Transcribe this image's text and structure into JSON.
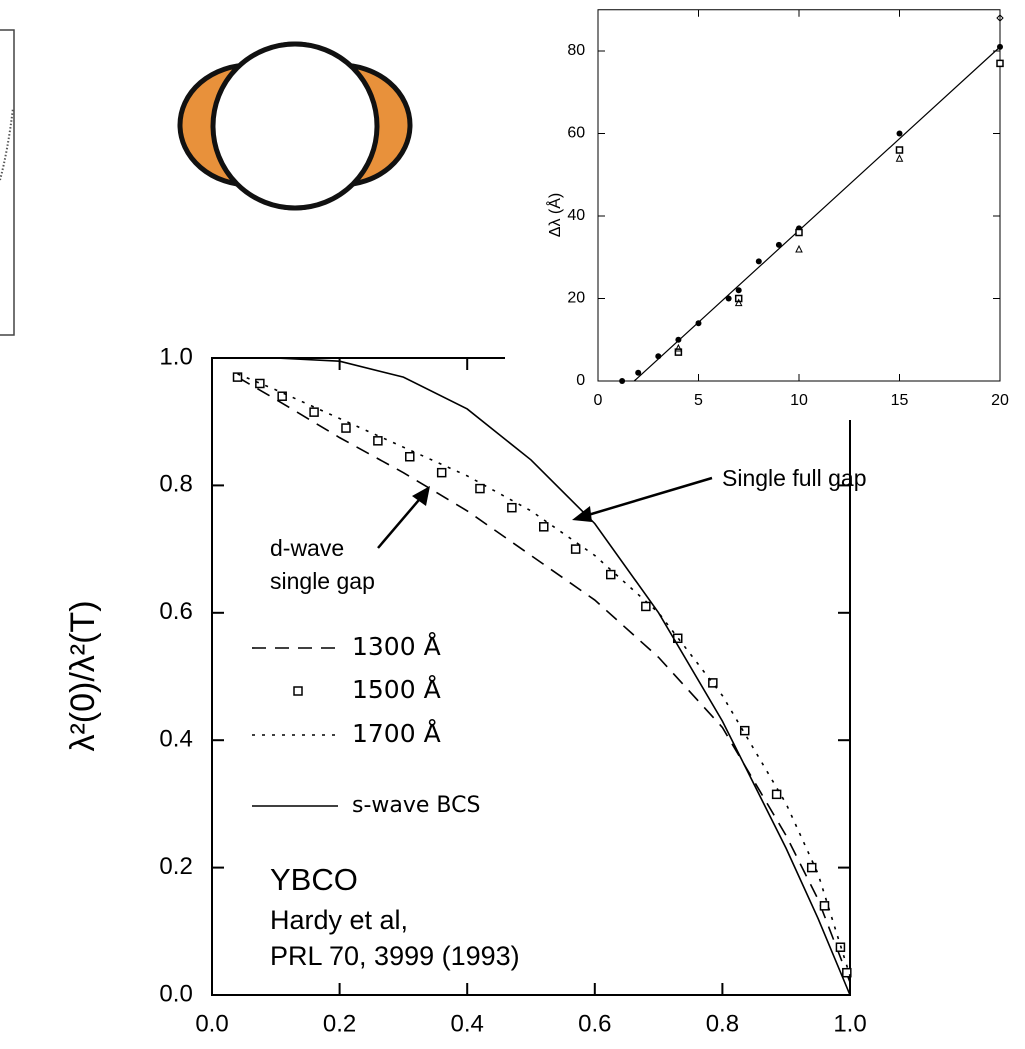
{
  "chart_data": [
    {
      "type": "line",
      "y_label": "λ²(0)/λ²(T)",
      "xlim": [
        0,
        1
      ],
      "ylim": [
        0,
        1
      ],
      "xticks": [
        {
          "value": 0,
          "label": "0.0"
        },
        {
          "value": 0.2,
          "label": "0.2"
        },
        {
          "value": 0.4,
          "label": "0.4"
        },
        {
          "value": 0.6,
          "label": "0.6"
        },
        {
          "value": 0.8,
          "label": "0.8"
        },
        {
          "value": 1,
          "label": "1.0"
        }
      ],
      "yticks": [
        {
          "value": 0,
          "label": "0.0"
        },
        {
          "value": 0.2,
          "label": "0.2"
        },
        {
          "value": 0.4,
          "label": "0.4"
        },
        {
          "value": 0.6,
          "label": "0.6"
        },
        {
          "value": 0.8,
          "label": "0.8"
        },
        {
          "value": 1,
          "label": "1.0"
        }
      ],
      "series": [
        {
          "name": "1300 Å",
          "style": "dashed",
          "color": "#000000",
          "x": [
            0.04,
            0.1,
            0.2,
            0.3,
            0.4,
            0.5,
            0.6,
            0.7,
            0.8,
            0.9,
            0.95,
            1.0
          ],
          "values": [
            0.97,
            0.935,
            0.875,
            0.82,
            0.76,
            0.69,
            0.62,
            0.53,
            0.42,
            0.25,
            0.15,
            0.02
          ]
        },
        {
          "name": "1500 Å",
          "style": "markers",
          "color": "#000000",
          "x": [
            0.04,
            0.075,
            0.11,
            0.16,
            0.21,
            0.26,
            0.31,
            0.36,
            0.42,
            0.47,
            0.52,
            0.57,
            0.625,
            0.68,
            0.73,
            0.785,
            0.835,
            0.885,
            0.94,
            0.96,
            0.985,
            0.995
          ],
          "values": [
            0.97,
            0.96,
            0.94,
            0.915,
            0.89,
            0.87,
            0.845,
            0.82,
            0.795,
            0.765,
            0.735,
            0.7,
            0.66,
            0.61,
            0.56,
            0.49,
            0.415,
            0.315,
            0.2,
            0.14,
            0.075,
            0.035
          ]
        },
        {
          "name": "1700 Å",
          "style": "dotted",
          "color": "#000000",
          "x": [
            0.04,
            0.1,
            0.2,
            0.3,
            0.4,
            0.5,
            0.6,
            0.7,
            0.8,
            0.9,
            0.95,
            1.0
          ],
          "values": [
            0.975,
            0.95,
            0.905,
            0.86,
            0.815,
            0.76,
            0.69,
            0.6,
            0.47,
            0.3,
            0.19,
            0.03
          ]
        },
        {
          "name": "s-wave BCS",
          "style": "solid",
          "color": "#000000",
          "x": [
            0,
            0.1,
            0.2,
            0.3,
            0.4,
            0.5,
            0.6,
            0.7,
            0.8,
            0.9,
            0.95,
            1.0
          ],
          "values": [
            1.0,
            1.0,
            0.995,
            0.97,
            0.92,
            0.84,
            0.74,
            0.6,
            0.43,
            0.23,
            0.12,
            0.0
          ]
        }
      ],
      "annotations": [
        "Single full gap",
        "d-wave",
        "single gap",
        "YBCO",
        "Hardy et al,",
        "PRL 70, 3999 (1993)"
      ]
    },
    {
      "type": "scatter",
      "y_label": "Δλ (Å)",
      "xlim": [
        0,
        20
      ],
      "ylim": [
        0,
        90
      ],
      "xticks": [
        0,
        5,
        10,
        15,
        20
      ],
      "yticks": [
        0,
        20,
        40,
        60,
        80
      ],
      "series": [
        {
          "style": "line",
          "color": "#000000",
          "x": [
            1.8,
            20
          ],
          "values": [
            0,
            81
          ]
        },
        {
          "style": "filled",
          "color": "#000000",
          "x": [
            1.2,
            2,
            3,
            4,
            5,
            6.5,
            7,
            8,
            9,
            10,
            15,
            20
          ],
          "values": [
            0,
            2,
            6,
            10,
            14,
            20,
            22,
            29,
            33,
            37,
            60,
            81
          ]
        },
        {
          "style": "square",
          "color": "#000000",
          "x": [
            4,
            7,
            10,
            15,
            20
          ],
          "values": [
            7,
            20,
            36,
            56,
            77
          ]
        },
        {
          "style": "triangle",
          "color": "#000000",
          "x": [
            4,
            7,
            10,
            15
          ],
          "values": [
            8,
            19,
            32,
            54
          ]
        },
        {
          "style": "diamond",
          "color": "#000000",
          "x": [
            20
          ],
          "values": [
            88
          ]
        }
      ]
    }
  ]
}
